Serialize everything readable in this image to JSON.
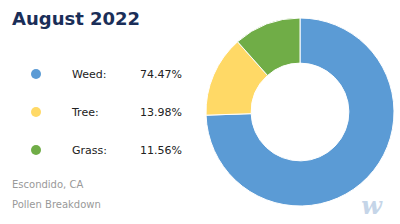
{
  "chart_data": {
    "type": "pie",
    "title": "August 2022",
    "subtitle": [
      "Escondido, CA",
      "Pollen Breakdown"
    ],
    "annotations": [
      "w"
    ],
    "categories": [
      "Weed:",
      "Tree:",
      "Grass:"
    ],
    "values": [
      74.47,
      13.98,
      11.56
    ],
    "value_labels": [
      "74.47%",
      "13.98%",
      "11.56%"
    ],
    "colors": [
      "#5B9BD5",
      "#FFD966",
      "#70AD47"
    ],
    "legend": "left"
  }
}
